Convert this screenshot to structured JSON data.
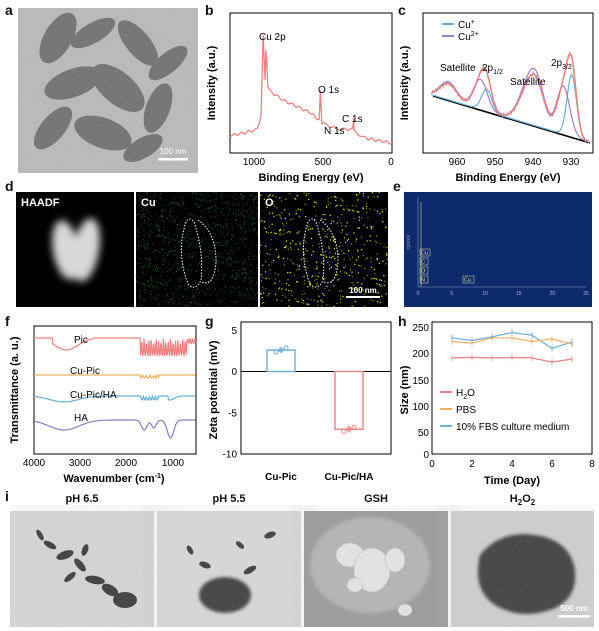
{
  "panel_labels": {
    "a": "a",
    "b": "b",
    "c": "c",
    "d": "d",
    "e": "e",
    "f": "f",
    "g": "g",
    "h": "h",
    "i": "i"
  },
  "a": {
    "scale_bar": "100 nm"
  },
  "b": {
    "ylabel": "Intensity (a.u.)",
    "xlabel": "Binding Energy (eV)",
    "ticks": [
      "1000",
      "500",
      "0"
    ],
    "peaks": {
      "cu2p": "Cu 2p",
      "o1s": "O 1s",
      "c1s": "C 1s",
      "n1s": "N 1s"
    }
  },
  "c": {
    "ylabel": "Intensity (a.u.)",
    "xlabel": "Binding Energy (eV)",
    "ticks": [
      "960",
      "950",
      "940",
      "930"
    ],
    "legend": {
      "cu1": "Cu",
      "cu1_sup": "+",
      "cu2": "Cu",
      "cu2_sup": "2+"
    },
    "annot": {
      "sat1": "Satellite",
      "p12": "2p",
      "p12_sub": "1/2",
      "sat2": "Satellite",
      "p32": "2p",
      "p32_sub": "3/2"
    },
    "colors": {
      "cu1": "#6baed6",
      "cu2": "#9e7fc9",
      "fit": "#f08080",
      "raw": "#aaaaaa"
    }
  },
  "d": {
    "labels": {
      "haadf": "HAADF",
      "cu": "Cu",
      "o": "O"
    },
    "scale_bar": "100 nm"
  },
  "e": {
    "ylabel": "cps/eV",
    "labels": [
      "Cu",
      "C",
      "O",
      "N",
      "Cu"
    ],
    "ticks": [
      "0",
      "5",
      "10",
      "15",
      "20",
      "25"
    ]
  },
  "f": {
    "ylabel": "Transmittance (a. u.)",
    "xlabel": "Wavenumber (cm",
    "xlabel_sup": "-1",
    "xlabel_end": ")",
    "ticks": [
      "4000",
      "3000",
      "2000",
      "1000"
    ],
    "series": {
      "pic": "Pic",
      "cupic": "Cu-Pic",
      "cupicha": "Cu-Pic/HA",
      "ha": "HA"
    },
    "colors": {
      "pic": "#f08080",
      "cupic": "#f0b060",
      "cupicha": "#6baed6",
      "ha": "#8b7cc8"
    }
  },
  "g": {
    "ylabel": "Zeta potential (mV)",
    "yticks": [
      "5",
      "0",
      "-5",
      "-10"
    ],
    "categories": [
      "Cu-Pic",
      "Cu-Pic/HA"
    ],
    "values": [
      2.6,
      -7.0
    ]
  },
  "h": {
    "ylabel": "Size (nm)",
    "xlabel": "Time (Day)",
    "yticks": [
      "250",
      "200",
      "150",
      "100",
      "50",
      "0"
    ],
    "xticks": [
      "0",
      "2",
      "4",
      "6",
      "8"
    ],
    "legend": {
      "h2o": "H",
      "h2o_sub": "2",
      "h2o_end": "O",
      "pbs": "PBS",
      "fbs": "10% FBS culture medium"
    }
  },
  "i": {
    "labels": {
      "ph65": "pH 6.5",
      "ph55": "pH 5.5",
      "gsh": "GSH",
      "h2o2": "H",
      "h2o2_sub": "2",
      "h2o2_mid": "O",
      "h2o2_sub2": "2"
    },
    "scale_bar": "500 nm"
  },
  "chart_data": [
    {
      "type": "line",
      "panel": "b",
      "xlabel": "Binding Energy (eV)",
      "ylabel": "Intensity (a.u.)",
      "xlim": [
        1200,
        0
      ],
      "series": [
        {
          "x": [
            1200,
            1100,
            1000,
            970,
            955,
            940,
            934,
            920,
            900,
            800,
            700,
            600,
            540,
            531,
            520,
            400,
            400,
            290,
            285,
            280,
            200,
            100,
            0
          ],
          "y": [
            0.1,
            0.12,
            0.15,
            0.25,
            0.9,
            0.55,
            0.78,
            0.5,
            0.45,
            0.38,
            0.33,
            0.28,
            0.22,
            0.45,
            0.2,
            0.15,
            0.15,
            0.15,
            0.25,
            0.13,
            0.08,
            0.06,
            0.04
          ]
        }
      ]
    },
    {
      "type": "line",
      "panel": "c",
      "xlabel": "Binding Energy (eV)",
      "ylabel": "Intensity (a.u.)",
      "xlim": [
        968,
        928
      ],
      "series": [
        {
          "name": "Cu+",
          "peaks": [
            953,
            933
          ]
        },
        {
          "name": "Cu2+",
          "peaks": [
            954.5,
            943,
            935
          ]
        }
      ]
    },
    {
      "type": "line",
      "panel": "f",
      "xlabel": "Wavenumber (cm-1)",
      "ylabel": "Transmittance (a. u.)",
      "xlim": [
        4000,
        500
      ],
      "series": [
        {
          "name": "Pic"
        },
        {
          "name": "Cu-Pic"
        },
        {
          "name": "Cu-Pic/HA"
        },
        {
          "name": "HA"
        }
      ]
    },
    {
      "type": "bar",
      "panel": "g",
      "categories": [
        "Cu-Pic",
        "Cu-Pic/HA"
      ],
      "values": [
        2.6,
        -7.0
      ],
      "ylim": [
        -10,
        5
      ],
      "ylabel": "Zeta potential (mV)"
    },
    {
      "type": "line",
      "panel": "h",
      "xlabel": "Time (Day)",
      "ylabel": "Size (nm)",
      "xlim": [
        0,
        8
      ],
      "ylim": [
        0,
        250
      ],
      "x": [
        1,
        2,
        3,
        4,
        5,
        6,
        7
      ],
      "series": [
        {
          "name": "H2O",
          "values": [
            182,
            183,
            182,
            183,
            182,
            174,
            180
          ]
        },
        {
          "name": "PBS",
          "values": [
            213,
            210,
            220,
            220,
            213,
            218,
            208
          ]
        },
        {
          "name": "10% FBS culture medium",
          "values": [
            220,
            215,
            222,
            230,
            225,
            200,
            212
          ]
        }
      ]
    }
  ]
}
